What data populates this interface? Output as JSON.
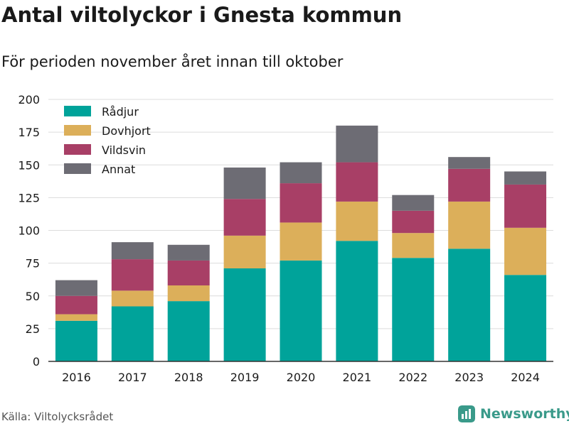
{
  "header": {
    "title": "Antal viltolyckor i Gnesta kommun",
    "subtitle": "För perioden november året innan till oktober"
  },
  "footer": {
    "source": "Källa: Viltolycksrådet",
    "brand": "Newsworthy",
    "brand_color": "#3a9a8a"
  },
  "chart_data": {
    "type": "bar",
    "stacked": true,
    "categories": [
      "2016",
      "2017",
      "2018",
      "2019",
      "2020",
      "2021",
      "2022",
      "2023",
      "2024"
    ],
    "series": [
      {
        "name": "Rådjur",
        "color": "#00a39a",
        "values": [
          31,
          42,
          46,
          71,
          77,
          92,
          79,
          86,
          66
        ]
      },
      {
        "name": "Dovhjort",
        "color": "#dcaf5a",
        "values": [
          5,
          12,
          12,
          25,
          29,
          30,
          19,
          36,
          36
        ]
      },
      {
        "name": "Vildsvin",
        "color": "#a83f66",
        "values": [
          14,
          24,
          19,
          28,
          30,
          30,
          17,
          25,
          33
        ]
      },
      {
        "name": "Annat",
        "color": "#6d6c74",
        "values": [
          12,
          13,
          12,
          24,
          16,
          28,
          12,
          9,
          10
        ]
      }
    ],
    "y_ticks": [
      "0",
      "25",
      "50",
      "75",
      "100",
      "125",
      "150",
      "175",
      "200"
    ],
    "ylim": [
      0,
      200
    ],
    "grid": true,
    "legend_position": "top-left",
    "xlabel": "",
    "ylabel": ""
  }
}
